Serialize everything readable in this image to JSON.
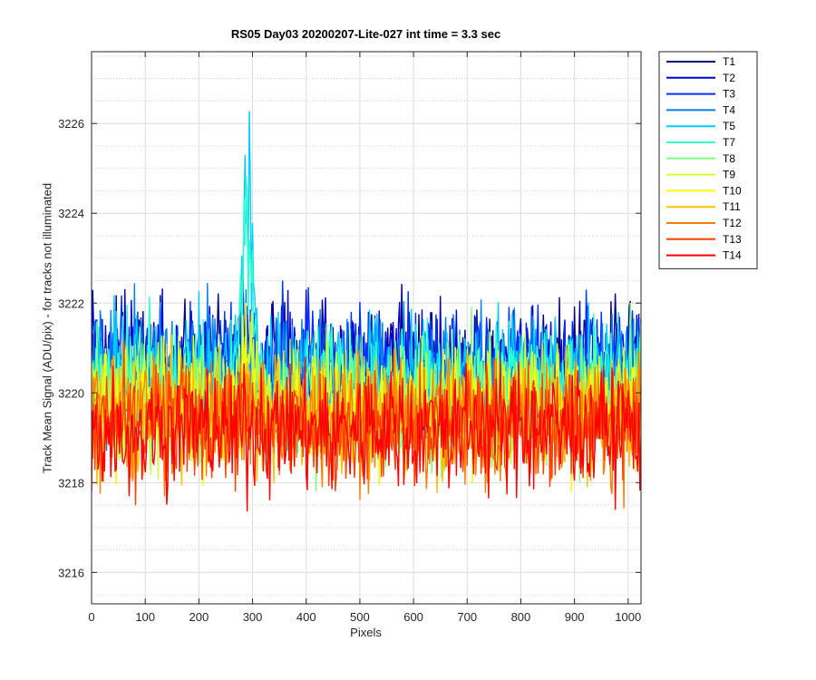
{
  "chart_data": {
    "type": "line",
    "title": "RS05 Day03 20200207-Lite-027 int time = 3.3 sec",
    "xlabel": "Pixels",
    "ylabel": "Track Mean Signal (ADU/pix) - for tracks not illuminated",
    "xlim": [
      0,
      1024
    ],
    "ylim": [
      3215.3,
      3227.6
    ],
    "xticks": [
      0,
      100,
      200,
      300,
      400,
      500,
      600,
      700,
      800,
      900,
      1000
    ],
    "yticks": [
      3216,
      3218,
      3220,
      3222,
      3224,
      3226
    ],
    "grid": true,
    "legend_position": "outside-top-right",
    "series": [
      {
        "name": "T1",
        "color": "#00007F",
        "mean": 3220.6,
        "spread": 0.95,
        "peak": 0.0
      },
      {
        "name": "T2",
        "color": "#0000D0",
        "mean": 3220.6,
        "spread": 0.95,
        "peak": 0.0
      },
      {
        "name": "T3",
        "color": "#0030FF",
        "mean": 3220.6,
        "spread": 0.95,
        "peak": 0.3
      },
      {
        "name": "T4",
        "color": "#0080FF",
        "mean": 3220.5,
        "spread": 0.95,
        "peak": 0.5
      },
      {
        "name": "T5",
        "color": "#00CCFF",
        "mean": 3220.4,
        "spread": 0.9,
        "peak": 4.5
      },
      {
        "name": "T7",
        "color": "#30FFCF",
        "mean": 3220.2,
        "spread": 0.9,
        "peak": 3.8
      },
      {
        "name": "T8",
        "color": "#7FFF80",
        "mean": 3219.8,
        "spread": 1.0,
        "peak": 1.8
      },
      {
        "name": "T9",
        "color": "#CFFF30",
        "mean": 3219.8,
        "spread": 0.95,
        "peak": 1.0
      },
      {
        "name": "T10",
        "color": "#FFFF00",
        "mean": 3219.6,
        "spread": 0.95,
        "peak": 0.6
      },
      {
        "name": "T11",
        "color": "#FFC000",
        "mean": 3219.5,
        "spread": 0.95,
        "peak": 0.3
      },
      {
        "name": "T12",
        "color": "#FF8000",
        "mean": 3219.4,
        "spread": 0.95,
        "peak": 0.2
      },
      {
        "name": "T13",
        "color": "#FF4000",
        "mean": 3219.3,
        "spread": 0.95,
        "peak": 0.0
      },
      {
        "name": "T14",
        "color": "#FF0000",
        "mean": 3219.2,
        "spread": 0.95,
        "peak": 0.0
      }
    ],
    "feature": {
      "description": "noise traces with a peak near pixel 290",
      "peak_center": 290,
      "peak_width": 14
    }
  }
}
